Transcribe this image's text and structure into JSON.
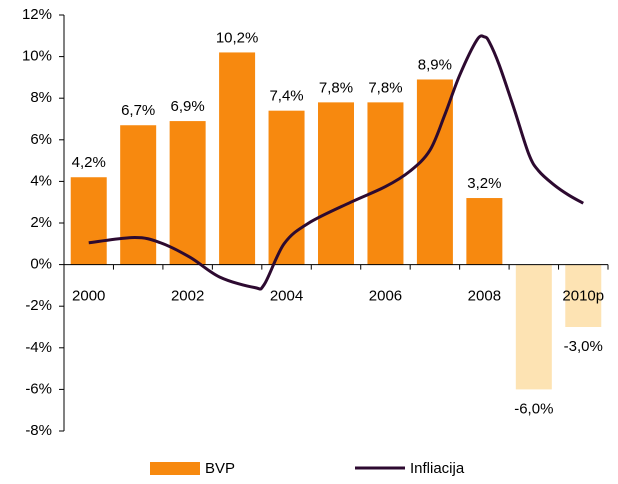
{
  "chart_data": {
    "type": "bar+line",
    "categories": [
      "2000",
      null,
      "2002",
      null,
      "2004",
      null,
      "2006",
      null,
      "2008",
      null,
      "2010p"
    ],
    "ylim": [
      -8,
      12
    ],
    "yticks": [
      {
        "value": -8,
        "label": "-8%"
      },
      {
        "value": -6,
        "label": "-6%"
      },
      {
        "value": -4,
        "label": "-4%"
      },
      {
        "value": -2,
        "label": "-2%"
      },
      {
        "value": 0,
        "label": "0%"
      },
      {
        "value": 2,
        "label": "2%"
      },
      {
        "value": 4,
        "label": "4%"
      },
      {
        "value": 6,
        "label": "6%"
      },
      {
        "value": 8,
        "label": "8%"
      },
      {
        "value": 10,
        "label": "10%"
      },
      {
        "value": 12,
        "label": "12%"
      }
    ],
    "xlim": [
      1999.5,
      2010.5
    ],
    "legend": "bottom",
    "series": [
      {
        "name": "BVP",
        "type": "bar",
        "color": "#f7890f",
        "colors": [
          "#f7890f",
          "#f7890f",
          "#f7890f",
          "#f7890f",
          "#f7890f",
          "#f7890f",
          "#f7890f",
          "#f7890f",
          "#f7890f",
          "#fde3b3",
          "#fde3b3"
        ],
        "values": [
          4.2,
          6.7,
          6.9,
          10.2,
          7.4,
          7.8,
          7.8,
          8.9,
          3.2,
          -6.0,
          -3.0
        ],
        "value_labels": [
          "4,2%",
          "6,7%",
          "6,9%",
          "10,2%",
          "7,4%",
          "7,8%",
          "7,8%",
          "8,9%",
          "3,2%",
          "-6,0%",
          "-3,0%"
        ]
      },
      {
        "name": "Infliacija",
        "type": "line",
        "color": "#2d0a30",
        "x": [
          2000,
          2000.93,
          2001.45,
          2002.05,
          2002.65,
          2003.35,
          2003.55,
          2003.95,
          2004.45,
          2005.3,
          2006,
          2006.5,
          2006.9,
          2007.2,
          2007.5,
          2007.85,
          2008,
          2008.1,
          2008.3,
          2008.6,
          2008.9,
          2009.1,
          2009.4,
          2009.7,
          2010
        ],
        "values": [
          1.05,
          1.3,
          1.05,
          0.35,
          -0.6,
          -1.1,
          -0.95,
          1.0,
          2.0,
          3.0,
          3.75,
          4.5,
          5.5,
          7.2,
          9.1,
          10.8,
          10.95,
          10.7,
          9.6,
          7.5,
          5.3,
          4.5,
          3.85,
          3.35,
          2.95
        ]
      }
    ]
  }
}
